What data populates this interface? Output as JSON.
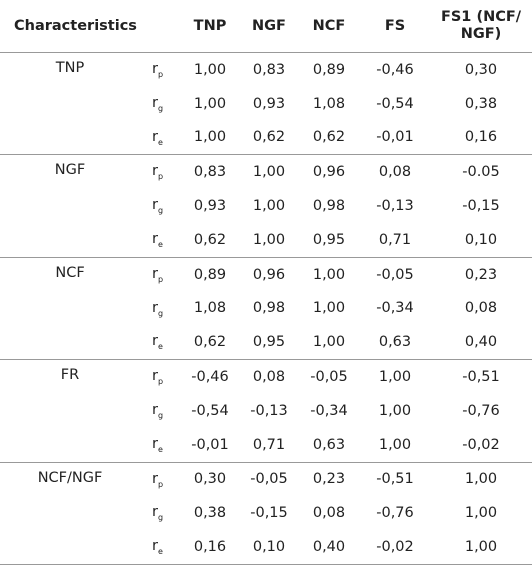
{
  "header": {
    "columns": [
      "Characteristics",
      "TNP",
      "NGF",
      "NCF",
      "FS",
      "FS1 (NCF/ NGF)"
    ]
  },
  "groups": [
    {
      "name": "TNP",
      "rows": [
        {
          "symbol": "r",
          "sub": "p",
          "values": [
            "1,00",
            "0,83",
            "0,89",
            "-0,46",
            "0,30"
          ]
        },
        {
          "symbol": "r",
          "sub": "g",
          "values": [
            "1,00",
            "0,93",
            "1,08",
            "-0,54",
            "0,38"
          ]
        },
        {
          "symbol": "r",
          "sub": "e",
          "values": [
            "1,00",
            "0,62",
            "0,62",
            "-0,01",
            "0,16"
          ]
        }
      ]
    },
    {
      "name": "NGF",
      "rows": [
        {
          "symbol": "r",
          "sub": "p",
          "values": [
            "0,83",
            "1,00",
            "0,96",
            "0,08",
            "-0.05"
          ]
        },
        {
          "symbol": "r",
          "sub": "g",
          "values": [
            "0,93",
            "1,00",
            "0,98",
            "-0,13",
            "-0,15"
          ]
        },
        {
          "symbol": "r",
          "sub": "e",
          "values": [
            "0,62",
            "1,00",
            "0,95",
            "0,71",
            "0,10"
          ]
        }
      ]
    },
    {
      "name": "NCF",
      "rows": [
        {
          "symbol": "r",
          "sub": "p",
          "values": [
            "0,89",
            "0,96",
            "1,00",
            "-0,05",
            "0,23"
          ]
        },
        {
          "symbol": "r",
          "sub": "g",
          "values": [
            "1,08",
            "0,98",
            "1,00",
            "-0,34",
            "0,08"
          ]
        },
        {
          "symbol": "r",
          "sub": "e",
          "values": [
            "0,62",
            "0,95",
            "1,00",
            "0,63",
            "0,40"
          ]
        }
      ]
    },
    {
      "name": "FR",
      "rows": [
        {
          "symbol": "r",
          "sub": "p",
          "values": [
            "-0,46",
            "0,08",
            "-0,05",
            "1,00",
            "-0,51"
          ]
        },
        {
          "symbol": "r",
          "sub": "g",
          "values": [
            "-0,54",
            "-0,13",
            "-0,34",
            "1,00",
            "-0,76"
          ]
        },
        {
          "symbol": "r",
          "sub": "e",
          "values": [
            "-0,01",
            "0,71",
            "0,63",
            "1,00",
            "-0,02"
          ]
        }
      ]
    },
    {
      "name": "NCF/NGF",
      "rows": [
        {
          "symbol": "r",
          "sub": "p",
          "values": [
            "0,30",
            "-0,05",
            "0,23",
            "-0,51",
            "1,00"
          ]
        },
        {
          "symbol": "r",
          "sub": "g",
          "values": [
            "0,38",
            "-0,15",
            "0,08",
            "-0,76",
            "1,00"
          ]
        },
        {
          "symbol": "r",
          "sub": "e",
          "values": [
            "0,16",
            "0,10",
            "0,40",
            "-0,02",
            "1,00"
          ]
        }
      ]
    }
  ]
}
